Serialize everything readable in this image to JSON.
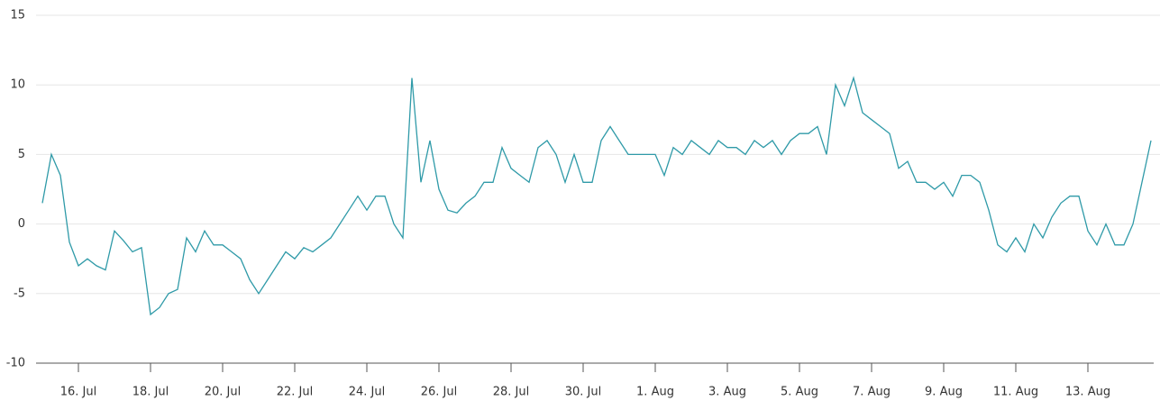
{
  "chart_data": {
    "type": "line",
    "categories": [
      null,
      null,
      null,
      null,
      "16. Jul",
      null,
      null,
      null,
      null,
      null,
      null,
      null,
      "18. Jul",
      null,
      null,
      null,
      null,
      null,
      null,
      null,
      "20. Jul",
      null,
      null,
      null,
      null,
      null,
      null,
      null,
      "22. Jul",
      null,
      null,
      null,
      null,
      null,
      null,
      null,
      "24. Jul",
      null,
      null,
      null,
      null,
      null,
      null,
      null,
      "26. Jul",
      null,
      null,
      null,
      null,
      null,
      null,
      null,
      "28. Jul",
      null,
      null,
      null,
      null,
      null,
      null,
      null,
      "30. Jul",
      null,
      null,
      null,
      null,
      null,
      null,
      null,
      "1. Aug",
      null,
      null,
      null,
      null,
      null,
      null,
      null,
      "3. Aug",
      null,
      null,
      null,
      null,
      null,
      null,
      null,
      "5. Aug",
      null,
      null,
      null,
      null,
      null,
      null,
      null,
      "7. Aug",
      null,
      null,
      null,
      null,
      null,
      null,
      null,
      "9. Aug",
      null,
      null,
      null,
      null,
      null,
      null,
      null,
      "11. Aug",
      null,
      null,
      null,
      null,
      null,
      null,
      null,
      "13. Aug",
      null,
      null,
      null,
      null,
      null,
      null,
      null
    ],
    "values": [
      1.5,
      5,
      3.5,
      -1.3,
      -3,
      -2.5,
      -3,
      -3.3,
      -0.5,
      -1.2,
      -2,
      -1.7,
      -6.5,
      -6,
      -5,
      -4.7,
      -1,
      -2,
      -0.5,
      -1.5,
      -1.5,
      -2,
      -2.5,
      -4,
      -5,
      -4,
      -3,
      -2,
      -2.5,
      -1.7,
      -2,
      -1.5,
      -1,
      0,
      1,
      2,
      1,
      2,
      2,
      0,
      -1,
      10.5,
      3,
      6,
      2.5,
      1,
      0.8,
      1.5,
      2,
      3,
      3,
      5.5,
      4,
      3.5,
      3,
      5.5,
      6,
      5,
      3,
      5,
      3,
      3,
      6,
      7,
      6,
      5,
      5,
      5,
      5,
      3.5,
      5.5,
      5,
      6,
      5.5,
      5,
      6,
      5.5,
      5.5,
      5,
      6,
      5.5,
      6,
      5,
      6,
      6.5,
      6.5,
      7,
      5,
      10,
      8.5,
      10.5,
      8,
      7.5,
      7,
      6.5,
      4,
      4.5,
      3,
      3,
      2.5,
      3,
      2,
      3.5,
      3.5,
      3,
      1,
      -1.5,
      -2,
      -1,
      -2,
      0,
      -1,
      0.5,
      1.5,
      2,
      2,
      -0.5,
      -1.5,
      0,
      -1.5,
      -1.5,
      0,
      3,
      6
    ],
    "color": "#2f9aa8",
    "ylim": [
      -10,
      15
    ],
    "yticks": [
      -10,
      -5,
      0,
      5,
      10,
      15
    ],
    "grid": true
  }
}
